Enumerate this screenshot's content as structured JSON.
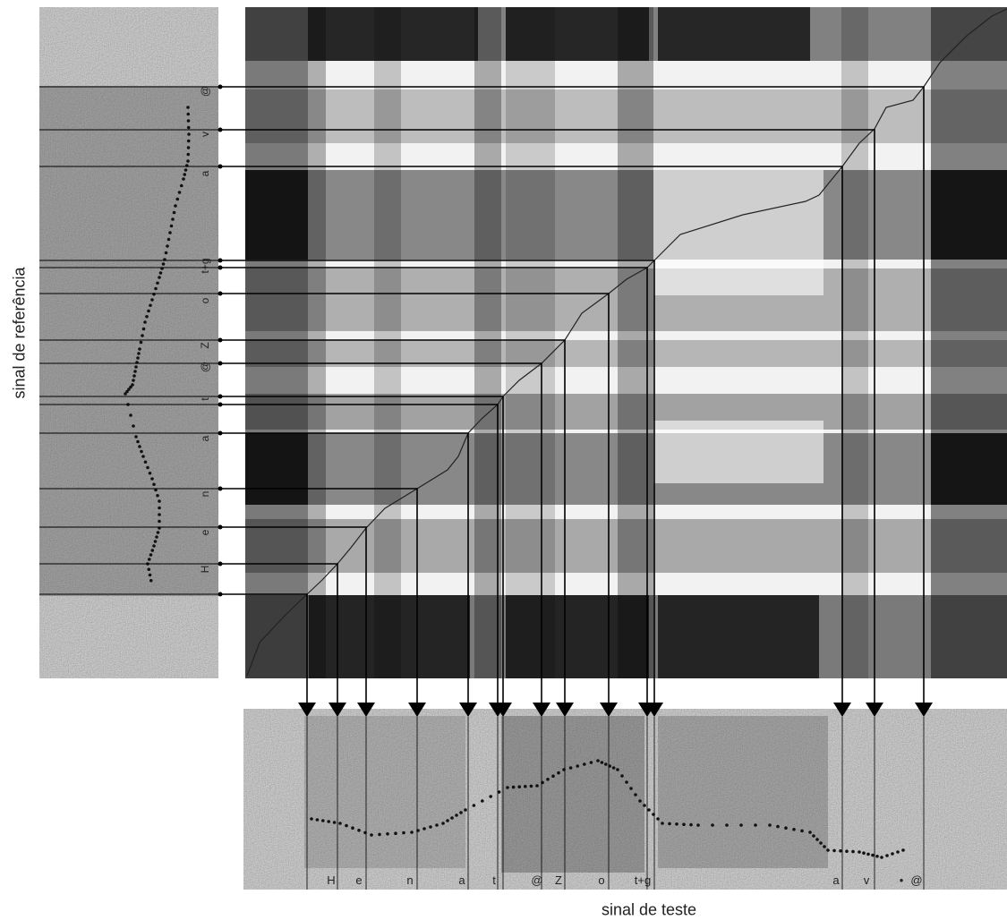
{
  "axis_titles": {
    "reference": "sinal de referência",
    "test": "sinal de teste"
  },
  "reference_phone_labels": [
    "@",
    "v",
    "a",
    "t+g",
    "o",
    "Z",
    "@",
    "t",
    "a",
    "n",
    "e",
    "H"
  ],
  "test_phone_labels": [
    "H",
    "e",
    "n",
    "a",
    "t",
    "@",
    "Z",
    "o",
    "t+g",
    "a",
    "v",
    "•",
    "@"
  ],
  "colors": {
    "background": "#ffffff",
    "lines": "#000000",
    "spectrogram_bg": "#b9b9b9",
    "matrix_dark": "#111111",
    "matrix_light": "#f2f2f2"
  }
}
